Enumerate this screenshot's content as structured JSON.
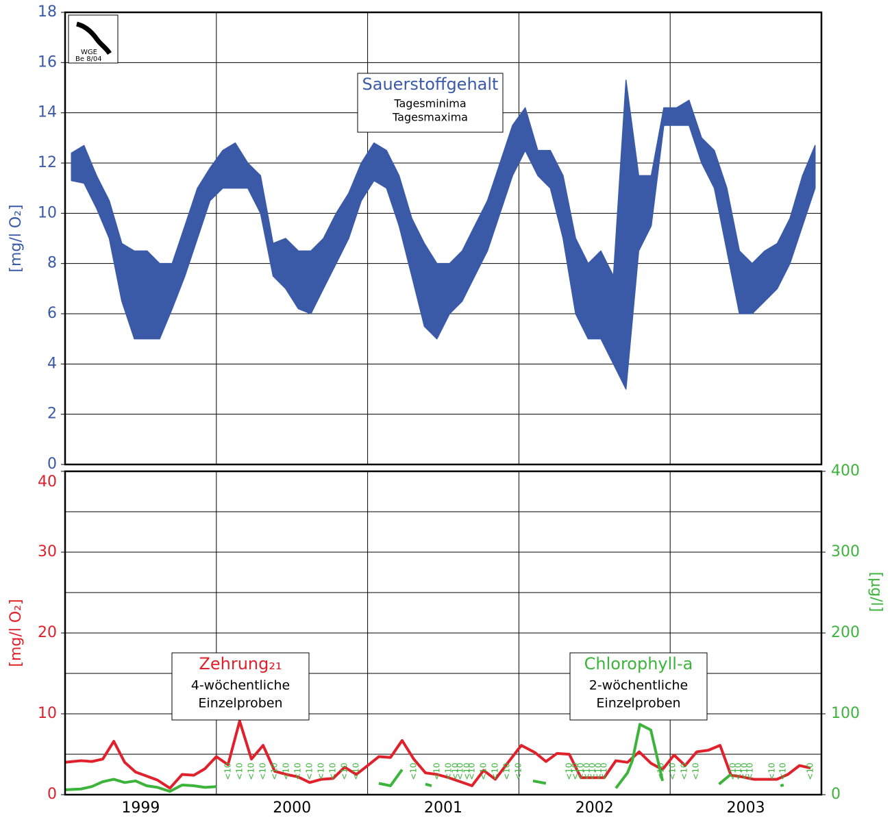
{
  "logo": {
    "name": "WGE",
    "note": "Be 8/04"
  },
  "chart_data": [
    {
      "type": "band",
      "ylabel": "[mg/l O₂]",
      "color": "#3a5aa8",
      "legend": {
        "title": "Sauerstoffgehalt"
      },
      "xlim": [
        1999,
        2004
      ],
      "xgrid": [
        2000,
        2001,
        2002,
        2003
      ],
      "ylim": [
        0,
        18
      ],
      "yticks": [
        0,
        2,
        4,
        6,
        8,
        10,
        12,
        14,
        16,
        18
      ],
      "grid": true,
      "x": [
        1999.042,
        1999.125,
        1999.208,
        1999.292,
        1999.375,
        1999.458,
        1999.542,
        1999.625,
        1999.708,
        1999.792,
        1999.875,
        1999.958,
        2000.042,
        2000.125,
        2000.208,
        2000.292,
        2000.375,
        2000.458,
        2000.542,
        2000.625,
        2000.708,
        2000.792,
        2000.875,
        2000.958,
        2001.042,
        2001.125,
        2001.208,
        2001.292,
        2001.375,
        2001.458,
        2001.542,
        2001.625,
        2001.708,
        2001.792,
        2001.875,
        2001.958,
        2002.042,
        2002.125,
        2002.208,
        2002.292,
        2002.375,
        2002.458,
        2002.542,
        2002.625,
        2002.708,
        2002.792,
        2002.875,
        2002.958,
        2003.042,
        2003.125,
        2003.208,
        2003.292,
        2003.375,
        2003.458,
        2003.542,
        2003.625,
        2003.708,
        2003.792,
        2003.875,
        2003.958
      ],
      "series": [
        {
          "name": "Tagesminima",
          "values": [
            11.3,
            11.2,
            10.2,
            9.0,
            6.5,
            5.0,
            5.0,
            5.0,
            6.2,
            7.5,
            9.0,
            10.5,
            11.0,
            11.0,
            11.0,
            10.0,
            7.5,
            7.0,
            6.2,
            6.0,
            7.0,
            8.0,
            9.0,
            10.5,
            11.3,
            11.0,
            9.5,
            7.5,
            5.5,
            5.0,
            6.0,
            6.5,
            7.5,
            8.5,
            10.0,
            11.5,
            12.5,
            11.5,
            11.0,
            9.0,
            6.0,
            5.0,
            5.0,
            4.0,
            3.0,
            8.5,
            9.5,
            13.5,
            13.5,
            13.5,
            12.0,
            11.0,
            8.5,
            6.0,
            6.0,
            6.5,
            7.0,
            8.0,
            9.5,
            11.0
          ]
        },
        {
          "name": "Tagesmaxima",
          "values": [
            12.4,
            12.7,
            11.5,
            10.5,
            8.8,
            8.5,
            8.5,
            8.0,
            8.0,
            9.5,
            11.0,
            11.8,
            12.5,
            12.8,
            12.0,
            11.5,
            8.8,
            9.0,
            8.5,
            8.5,
            9.0,
            10.0,
            10.8,
            12.0,
            12.8,
            12.5,
            11.5,
            9.8,
            8.8,
            8.0,
            8.0,
            8.5,
            9.5,
            10.5,
            12.0,
            13.5,
            14.2,
            12.5,
            12.5,
            11.5,
            9.0,
            8.0,
            8.5,
            7.5,
            15.3,
            11.5,
            11.5,
            14.2,
            14.2,
            14.5,
            13.0,
            12.5,
            11.0,
            8.5,
            8.0,
            8.5,
            8.8,
            9.8,
            11.5,
            12.7
          ]
        }
      ]
    },
    {
      "type": "line",
      "ylabel": "[mg/l O₂]",
      "y2label": "[µg/l]",
      "xlim": [
        1999,
        2004
      ],
      "xgrid": [
        2000,
        2001,
        2002,
        2003
      ],
      "xticks": [
        {
          "value": 1999.5,
          "label": "1999"
        },
        {
          "value": 2000.5,
          "label": "2000"
        },
        {
          "value": 2001.5,
          "label": "2001"
        },
        {
          "value": 2002.5,
          "label": "2002"
        },
        {
          "value": 2003.5,
          "label": "2003"
        }
      ],
      "ylim": [
        0,
        40
      ],
      "yticks": [
        0,
        10,
        20,
        30,
        40
      ],
      "ygrid": [
        5,
        10,
        15,
        20,
        25,
        30,
        35
      ],
      "y2lim": [
        0,
        400
      ],
      "y2ticks": [
        0,
        100,
        200,
        300,
        400
      ],
      "series": [
        {
          "name": "Zehrung₂₁",
          "note": [
            "4-wöchentliche",
            "Einzelproben"
          ],
          "color": "#e0202a",
          "x": [
            1999.0,
            1999.104,
            1999.177,
            1999.249,
            1999.322,
            1999.394,
            1999.466,
            1999.539,
            1999.611,
            1999.693,
            1999.774,
            1999.851,
            1999.924,
            2000.0,
            2000.077,
            2000.154,
            2000.232,
            2000.309,
            2000.386,
            2000.463,
            2000.54,
            2000.617,
            2000.694,
            2000.771,
            2000.848,
            2000.925,
            2001.0,
            2001.074,
            2001.151,
            2001.228,
            2001.305,
            2001.382,
            2001.459,
            2001.536,
            2001.613,
            2001.69,
            2001.767,
            2001.844,
            2001.921,
            2002.016,
            2002.107,
            2002.179,
            2002.252,
            2002.333,
            2002.41,
            2002.487,
            2002.564,
            2002.641,
            2002.718,
            2002.795,
            2002.872,
            2002.949,
            2003.026,
            2003.099,
            2003.176,
            2003.253,
            2003.33,
            2003.402,
            2003.475,
            2003.552,
            2003.629,
            2003.706,
            2003.778,
            2003.855,
            2003.928
          ],
          "values": [
            4.0,
            4.2,
            4.1,
            4.4,
            6.6,
            4.0,
            2.8,
            2.3,
            1.8,
            0.8,
            2.5,
            2.4,
            3.2,
            4.7,
            3.7,
            9.1,
            4.4,
            6.1,
            2.9,
            2.5,
            2.2,
            1.5,
            1.9,
            2.0,
            3.4,
            2.5,
            3.6,
            4.7,
            4.6,
            6.7,
            4.4,
            2.7,
            2.5,
            2.1,
            1.6,
            1.1,
            3.0,
            1.9,
            3.8,
            6.1,
            5.2,
            4.1,
            5.1,
            5.0,
            2.1,
            2.1,
            2.1,
            4.2,
            4.0,
            5.3,
            3.9,
            3.1,
            4.9,
            3.6,
            5.3,
            5.5,
            6.1,
            2.4,
            2.2,
            1.9,
            1.9,
            1.9,
            2.5,
            3.6,
            3.3
          ]
        },
        {
          "name": "Chlorophyll-a",
          "note": [
            "2-wöchentliche",
            "Einzelproben"
          ],
          "color": "#3cb43c",
          "axis": "y2",
          "x": [
            1999.0,
            1999.104,
            1999.177,
            1999.249,
            1999.322,
            1999.394,
            1999.466,
            1999.539,
            1999.611,
            1999.693,
            1999.774,
            1999.851,
            1999.924,
            2000.0,
            2000.5,
            2001.074,
            2001.151,
            2001.228,
            2001.3,
            2001.382,
            2001.423,
            2001.5,
            2002.093,
            2002.179,
            2002.3,
            2002.641,
            2002.718,
            2002.75,
            2002.8,
            2002.872,
            2002.95,
            2003.247,
            2003.292,
            2003.3,
            2003.323,
            2003.4,
            2003.7,
            2003.729,
            2003.75,
            2003.9,
            2003.95
          ],
          "values": [
            6,
            7,
            10,
            16,
            19,
            15,
            17,
            11,
            9,
            4,
            12,
            11,
            9,
            10,
            null,
            14,
            11,
            31,
            null,
            13,
            11,
            null,
            17,
            14,
            null,
            8,
            27,
            42,
            87,
            80,
            17,
            null,
            21,
            null,
            13,
            25,
            null,
            11,
            12,
            null,
            15
          ],
          "limit_label": "<10",
          "limit_x": [
            2000.078,
            2000.155,
            2000.232,
            2000.309,
            2000.386,
            2000.463,
            2000.54,
            2000.617,
            2000.694,
            2000.771,
            2000.848,
            2000.925,
            2001.305,
            2001.459,
            2001.536,
            2001.581,
            2001.613,
            2001.658,
            2001.69,
            2001.767,
            2001.844,
            2001.921,
            2001.998,
            2002.333,
            2002.374,
            2002.41,
            2002.451,
            2002.487,
            2002.528,
            2002.564,
            2002.94,
            2003.017,
            2003.094,
            2003.171,
            2003.416,
            2003.452,
            2003.493,
            2003.529,
            2003.674,
            2003.746,
            2003.928
          ]
        }
      ]
    }
  ]
}
